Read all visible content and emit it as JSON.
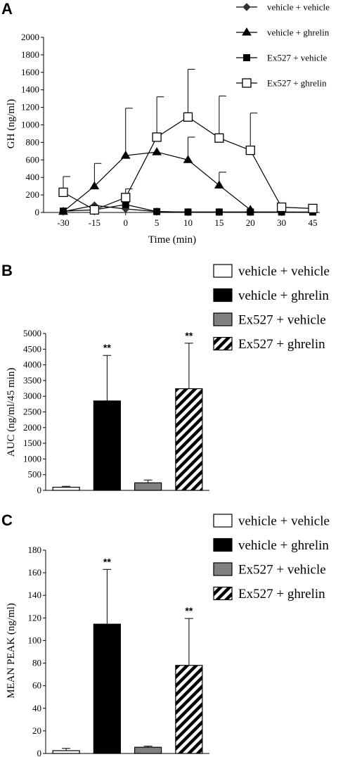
{
  "chart_data": [
    {
      "panel": "A",
      "type": "line",
      "ylabel": "GH (ng/ml)",
      "xlabel": "Time (min)",
      "categories": [
        "-30",
        "-15",
        "0",
        "5",
        "10",
        "15",
        "20",
        "30",
        "45"
      ],
      "ylim": [
        0,
        2000
      ],
      "yticks": [
        0,
        200,
        400,
        600,
        800,
        1000,
        1200,
        1400,
        1600,
        1800,
        2000
      ],
      "grid": false,
      "legend_position": "top-right",
      "series": [
        {
          "name": "vehicle + vehicle",
          "marker": "diamond",
          "values": [
            10,
            80,
            40,
            10,
            5,
            5,
            5,
            5,
            null
          ],
          "errors": [
            0,
            0,
            0,
            0,
            0,
            0,
            0,
            0,
            null
          ]
        },
        {
          "name": "vehicle + ghrelin",
          "marker": "triangle",
          "values": [
            10,
            300,
            650,
            690,
            600,
            310,
            30,
            null,
            null
          ],
          "errors": [
            0,
            260,
            540,
            0,
            260,
            150,
            0,
            null,
            null
          ]
        },
        {
          "name": "Ex527 + vehicle",
          "marker": "square-filled",
          "values": [
            15,
            30,
            90,
            10,
            5,
            5,
            5,
            5,
            5
          ],
          "errors": [
            0,
            0,
            0,
            0,
            0,
            0,
            0,
            0,
            0
          ]
        },
        {
          "name": "Ex527 + ghrelin",
          "marker": "square-open",
          "values": [
            230,
            30,
            170,
            860,
            1090,
            850,
            710,
            60,
            45
          ],
          "errors": [
            180,
            0,
            100,
            460,
            545,
            480,
            425,
            0,
            0
          ]
        }
      ]
    },
    {
      "panel": "B",
      "type": "bar",
      "ylabel": "AUC (ng/ml/45 min)",
      "categories": [
        "vehicle + vehicle",
        "vehicle + ghrelin",
        "Ex527 + vehicle",
        "Ex527 + ghrelin"
      ],
      "values": [
        100,
        2850,
        240,
        3240
      ],
      "errors": [
        30,
        1450,
        90,
        1450
      ],
      "annotations": [
        "",
        "**",
        "",
        "**"
      ],
      "ylim": [
        0,
        5000
      ],
      "yticks": [
        0,
        500,
        1000,
        1500,
        2000,
        2500,
        3000,
        3500,
        4000,
        4500,
        5000
      ],
      "legend_position": "top-right"
    },
    {
      "panel": "C",
      "type": "bar",
      "ylabel": "MEAN PEAK (ng/ml)",
      "categories": [
        "vehicle + vehicle",
        "vehicle + ghrelin",
        "Ex527 + vehicle",
        "Ex527 + ghrelin"
      ],
      "values": [
        2.5,
        114.5,
        5.5,
        78
      ],
      "errors": [
        2,
        48.5,
        1,
        41.5
      ],
      "annotations": [
        "",
        "**",
        "",
        "**"
      ],
      "ylim": [
        0,
        180
      ],
      "yticks": [
        0,
        20,
        40,
        60,
        80,
        100,
        120,
        140,
        160,
        180
      ],
      "legend_position": "top-right"
    }
  ],
  "styles": {
    "bar_fills": [
      "white",
      "black",
      "#808080",
      "hatch"
    ],
    "stroke": "#000000"
  }
}
